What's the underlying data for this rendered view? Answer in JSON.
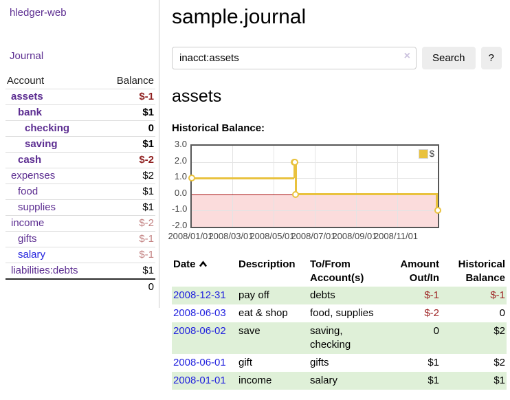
{
  "app": {
    "brand": "hledger-web",
    "nav": {
      "journal": "Journal"
    }
  },
  "sidebar": {
    "header": {
      "account": "Account",
      "balance": "Balance"
    },
    "accounts": [
      {
        "name": "assets",
        "balance": "$-1",
        "depth": 1,
        "bold": true,
        "balance_style": "neg-strong",
        "link_color": "purple"
      },
      {
        "name": "bank",
        "balance": "$1",
        "depth": 2,
        "bold": true,
        "balance_style": "",
        "link_color": "purple"
      },
      {
        "name": "checking",
        "balance": "0",
        "depth": 3,
        "bold": true,
        "balance_style": "",
        "link_color": "purple"
      },
      {
        "name": "saving",
        "balance": "$1",
        "depth": 3,
        "bold": true,
        "balance_style": "",
        "link_color": "purple"
      },
      {
        "name": "cash",
        "balance": "$-2",
        "depth": 2,
        "bold": true,
        "balance_style": "neg-strong",
        "link_color": "purple"
      },
      {
        "name": "expenses",
        "balance": "$2",
        "depth": 1,
        "bold": false,
        "balance_style": "",
        "link_color": "purple"
      },
      {
        "name": "food",
        "balance": "$1",
        "depth": 2,
        "bold": false,
        "balance_style": "",
        "link_color": "purple"
      },
      {
        "name": "supplies",
        "balance": "$1",
        "depth": 2,
        "bold": false,
        "balance_style": "",
        "link_color": "purple"
      },
      {
        "name": "income",
        "balance": "$-2",
        "depth": 1,
        "bold": false,
        "balance_style": "neg-soft",
        "link_color": "purple"
      },
      {
        "name": "gifts",
        "balance": "$-1",
        "depth": 2,
        "bold": false,
        "balance_style": "neg-soft",
        "link_color": "purple"
      },
      {
        "name": "salary",
        "balance": "$-1",
        "depth": 2,
        "bold": false,
        "balance_style": "neg-soft",
        "link_color": "blue"
      },
      {
        "name": "liabilities:debts",
        "balance": "$1",
        "depth": 1,
        "bold": false,
        "balance_style": "",
        "link_color": "purple"
      }
    ],
    "total": "0"
  },
  "header": {
    "title": "sample.journal"
  },
  "search": {
    "value": "inacct:assets",
    "clear_icon": "×",
    "button_label": "Search",
    "help_label": "?"
  },
  "main": {
    "account_title": "assets",
    "chart_label": "Historical Balance:"
  },
  "chart_data": {
    "type": "line",
    "step": true,
    "title": "Historical Balance",
    "x_range": [
      "2008-01-01",
      "2008-12-31"
    ],
    "ylim": [
      -2.0,
      3.0
    ],
    "yticks": [
      {
        "label": "3.0",
        "value": 3
      },
      {
        "label": "2.0",
        "value": 2
      },
      {
        "label": "1.0",
        "value": 1
      },
      {
        "label": "0.0",
        "value": 0
      },
      {
        "label": "-1.0",
        "value": -1
      },
      {
        "label": "-2.0",
        "value": -2
      }
    ],
    "xticks": [
      {
        "label": "2008/01/01",
        "date": "2008-01-01"
      },
      {
        "label": "2008/03/01",
        "date": "2008-03-01"
      },
      {
        "label": "2008/05/01",
        "date": "2008-05-01"
      },
      {
        "label": "2008/07/01",
        "date": "2008-07-01"
      },
      {
        "label": "2008/09/01",
        "date": "2008-09-01"
      },
      {
        "label": "2008/11/01",
        "date": "2008-11-01"
      }
    ],
    "series": [
      {
        "name": "$",
        "color": "#e9c23e",
        "points": [
          [
            "2008-01-01",
            1
          ],
          [
            "2008-06-01",
            2
          ],
          [
            "2008-06-02",
            2
          ],
          [
            "2008-06-03",
            0
          ],
          [
            "2008-12-31",
            -1
          ]
        ]
      }
    ],
    "grid": true,
    "legend_position": "top-right",
    "negative_region_color": "#fbdcdc",
    "zero_line_color": "#a40000"
  },
  "register": {
    "columns": [
      "Date",
      "Description",
      "To/From Account(s)",
      "Amount Out/In",
      "Historical Balance"
    ],
    "sort_icon": "chevron-up",
    "rows": [
      {
        "date": "2008-12-31",
        "description": "pay off",
        "accounts": "debts",
        "amount": "$-1",
        "amount_negative": true,
        "balance": "$-1",
        "balance_negative": true
      },
      {
        "date": "2008-06-03",
        "description": "eat & shop",
        "accounts": "food, supplies",
        "amount": "$-2",
        "amount_negative": true,
        "balance": "0",
        "balance_negative": false
      },
      {
        "date": "2008-06-02",
        "description": "save",
        "accounts": "saving, checking",
        "amount": "0",
        "amount_negative": false,
        "balance": "$2",
        "balance_negative": false
      },
      {
        "date": "2008-06-01",
        "description": "gift",
        "accounts": "gifts",
        "amount": "$1",
        "amount_negative": false,
        "balance": "$2",
        "balance_negative": false
      },
      {
        "date": "2008-01-01",
        "description": "income",
        "accounts": "salary",
        "amount": "$1",
        "amount_negative": false,
        "balance": "$1",
        "balance_negative": false
      }
    ]
  },
  "colors": {
    "accent_purple": "#5c2d91",
    "link_blue": "#2121de",
    "negative_strong": "#8f1f1f",
    "negative_soft": "#c28080",
    "negative_table": "#9e2525",
    "row_green": "#dff0d8",
    "chart_line": "#e9c23e",
    "chart_negative_region": "#fbdcdc",
    "chart_zero_line": "#a40000"
  }
}
